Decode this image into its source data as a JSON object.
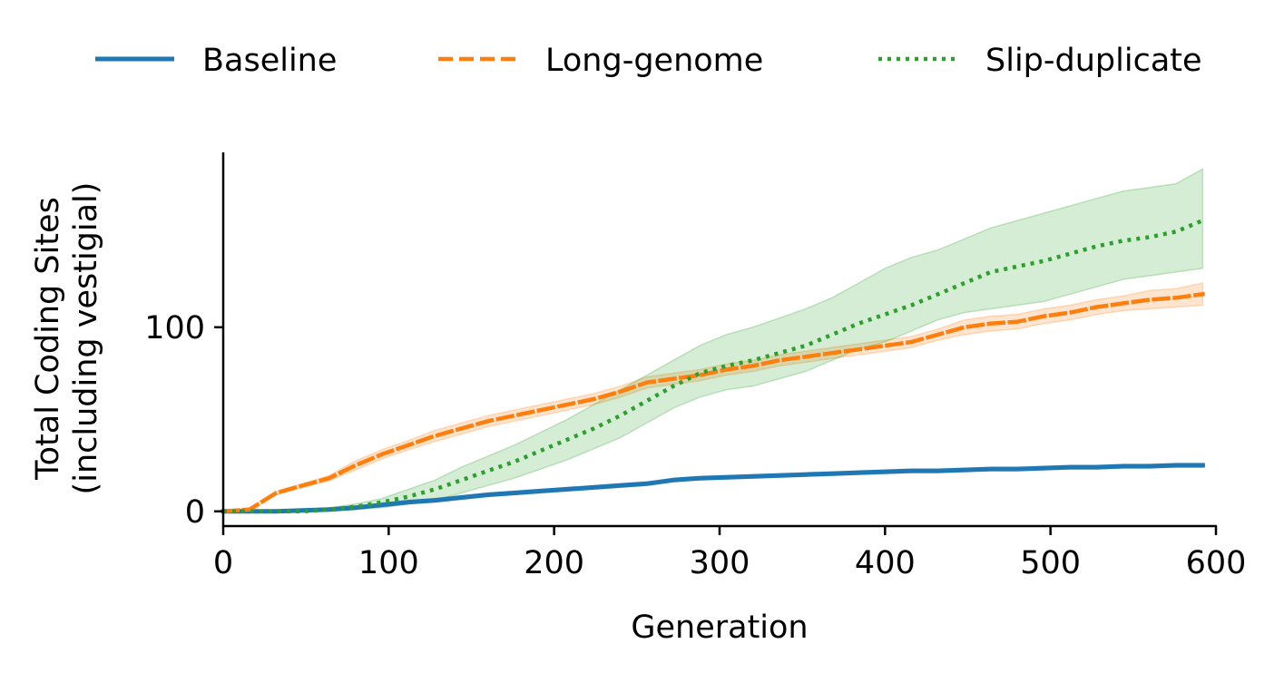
{
  "chart_data": {
    "type": "line",
    "title": "",
    "xlabel": "Generation",
    "ylabel_line1": "Total Coding Sites",
    "ylabel_line2": "(including vestigial)",
    "xlim": [
      0,
      600
    ],
    "ylim": [
      -8,
      195
    ],
    "xticks": [
      0,
      100,
      200,
      300,
      400,
      500,
      600
    ],
    "yticks": [
      0,
      100
    ],
    "grid": false,
    "legend_position": "top",
    "x": [
      0,
      16,
      32,
      48,
      64,
      80,
      96,
      112,
      128,
      144,
      160,
      176,
      192,
      208,
      224,
      240,
      256,
      272,
      288,
      304,
      320,
      336,
      352,
      368,
      384,
      400,
      416,
      432,
      448,
      464,
      480,
      496,
      512,
      528,
      544,
      560,
      576,
      592
    ],
    "series": [
      {
        "name": "Baseline",
        "color": "#1f77b4",
        "style": "solid",
        "values": [
          0,
          0,
          0,
          0.5,
          1,
          2,
          3.5,
          5,
          6,
          7.5,
          9,
          10,
          11,
          12,
          13,
          14,
          15,
          17,
          18,
          18.5,
          19,
          19.5,
          20,
          20.5,
          21,
          21.5,
          22,
          22,
          22.5,
          23,
          23,
          23.5,
          24,
          24,
          24.5,
          24.5,
          25,
          25
        ],
        "lower": [
          0,
          0,
          0,
          0,
          0.5,
          1.5,
          2.5,
          4,
          5,
          6.5,
          8,
          9,
          10,
          11,
          12,
          13,
          14,
          16,
          17,
          17.5,
          18,
          18.5,
          19,
          19.5,
          20,
          20.5,
          21,
          21,
          21.5,
          22,
          22,
          22.5,
          23,
          23,
          23.5,
          23.5,
          24,
          24
        ],
        "upper": [
          0,
          0,
          0,
          1,
          1.5,
          2.5,
          4.5,
          6,
          7,
          8.5,
          10,
          11,
          12,
          13,
          14,
          15,
          16,
          18,
          19,
          19.5,
          20,
          20.5,
          21,
          21.5,
          22,
          22.5,
          23,
          23,
          23.5,
          24,
          24,
          24.5,
          25,
          25,
          25.5,
          25.5,
          26,
          26
        ]
      },
      {
        "name": "Long-genome",
        "color": "#ff7f0e",
        "style": "dashed",
        "values": [
          0,
          1,
          10,
          14,
          18,
          25,
          31,
          36,
          41,
          45,
          49,
          52,
          55,
          58,
          61,
          65,
          70,
          72,
          74,
          77,
          79,
          82,
          84,
          86,
          88,
          90,
          92,
          96,
          100,
          102,
          103,
          106,
          108,
          111,
          113,
          115,
          116,
          118
        ],
        "lower": [
          0,
          0,
          9,
          13,
          16.5,
          22.5,
          28.5,
          33.5,
          38,
          42,
          46,
          49,
          52,
          55,
          58,
          62,
          67,
          69,
          71,
          74,
          76,
          79,
          81,
          83,
          85,
          87,
          89,
          93,
          96,
          98,
          99,
          102,
          104,
          107,
          109,
          110,
          111,
          112
        ],
        "upper": [
          0,
          2,
          11,
          15,
          19.5,
          27.5,
          33.5,
          38.5,
          44,
          48,
          52,
          55,
          58,
          61,
          64,
          68,
          73,
          75,
          77,
          80,
          82,
          85,
          87,
          89,
          91,
          93,
          95,
          99,
          104,
          106,
          107,
          110,
          112,
          115,
          117,
          120,
          121,
          124
        ]
      },
      {
        "name": "Slip-duplicate",
        "color": "#2ca02c",
        "style": "dotted",
        "values": [
          0,
          0,
          0,
          0,
          1,
          2.5,
          5,
          8,
          12,
          17,
          22,
          27,
          33,
          39,
          45,
          52,
          60,
          68,
          75,
          79,
          82,
          86,
          90,
          96,
          102,
          107,
          112,
          118,
          124,
          130,
          133,
          136,
          140,
          144,
          147,
          149,
          152,
          158
        ],
        "lower": [
          0,
          0,
          0,
          0,
          0,
          1,
          2,
          4,
          6,
          10,
          14,
          18,
          23,
          28,
          34,
          40,
          48,
          56,
          62,
          66,
          68,
          72,
          76,
          82,
          88,
          92,
          98,
          104,
          108,
          110,
          112,
          114,
          118,
          122,
          126,
          128,
          130,
          132
        ],
        "upper": [
          0,
          0,
          0,
          0.5,
          2,
          4,
          7,
          12,
          17,
          24,
          30,
          36,
          43,
          50,
          58,
          66,
          74,
          82,
          90,
          96,
          100,
          105,
          110,
          116,
          124,
          132,
          138,
          142,
          148,
          154,
          158,
          162,
          166,
          170,
          174,
          176,
          178,
          186
        ]
      }
    ]
  }
}
